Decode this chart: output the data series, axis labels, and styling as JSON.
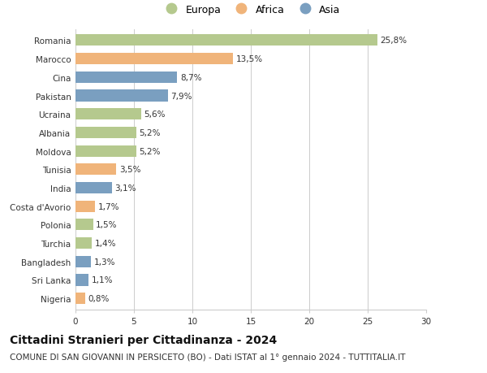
{
  "countries": [
    "Romania",
    "Marocco",
    "Cina",
    "Pakistan",
    "Ucraina",
    "Albania",
    "Moldova",
    "Tunisia",
    "India",
    "Costa d'Avorio",
    "Polonia",
    "Turchia",
    "Bangladesh",
    "Sri Lanka",
    "Nigeria"
  ],
  "values": [
    25.8,
    13.5,
    8.7,
    7.9,
    5.6,
    5.2,
    5.2,
    3.5,
    3.1,
    1.7,
    1.5,
    1.4,
    1.3,
    1.1,
    0.8
  ],
  "labels": [
    "25,8%",
    "13,5%",
    "8,7%",
    "7,9%",
    "5,6%",
    "5,2%",
    "5,2%",
    "3,5%",
    "3,1%",
    "1,7%",
    "1,5%",
    "1,4%",
    "1,3%",
    "1,1%",
    "0,8%"
  ],
  "continents": [
    "Europa",
    "Africa",
    "Asia",
    "Asia",
    "Europa",
    "Europa",
    "Europa",
    "Africa",
    "Asia",
    "Africa",
    "Europa",
    "Europa",
    "Asia",
    "Asia",
    "Africa"
  ],
  "colors": {
    "Europa": "#b5c98e",
    "Africa": "#f0b47a",
    "Asia": "#7a9fc0"
  },
  "legend_labels": [
    "Europa",
    "Africa",
    "Asia"
  ],
  "title": "Cittadini Stranieri per Cittadinanza - 2024",
  "subtitle": "COMUNE DI SAN GIOVANNI IN PERSICETO (BO) - Dati ISTAT al 1° gennaio 2024 - TUTTITALIA.IT",
  "xlim": [
    0,
    30
  ],
  "xticks": [
    0,
    5,
    10,
    15,
    20,
    25,
    30
  ],
  "background_color": "#ffffff",
  "grid_color": "#cccccc",
  "title_fontsize": 10,
  "subtitle_fontsize": 7.5,
  "bar_label_fontsize": 7.5,
  "tick_fontsize": 7.5,
  "legend_fontsize": 9
}
